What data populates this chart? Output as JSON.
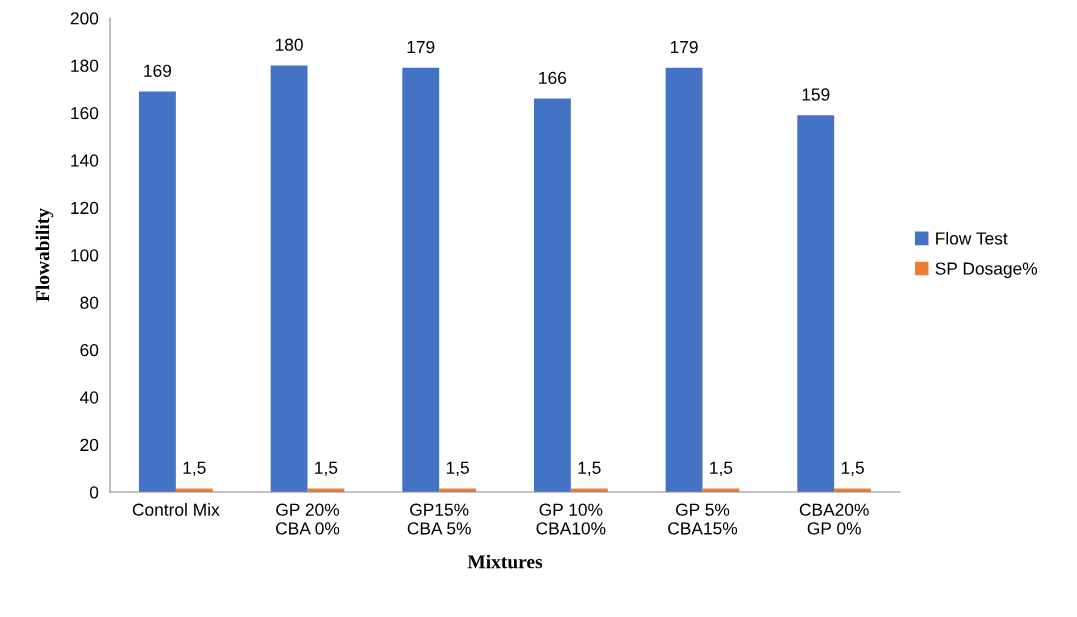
{
  "chart_data": {
    "type": "bar",
    "xlabel": "Mixtures",
    "ylabel": "Flowability",
    "categories": [
      "Control Mix",
      "GP 20%\nCBA 0%",
      "GP15%\nCBA 5%",
      "GP 10%\nCBA10%",
      "GP 5%\nCBA15%",
      "CBA20%\nGP 0%"
    ],
    "series": [
      {
        "name": "Flow Test",
        "color": "#4472c4",
        "values": [
          169,
          180,
          179,
          166,
          179,
          159
        ],
        "value_labels": [
          "169",
          "180",
          "179",
          "166",
          "179",
          "159"
        ]
      },
      {
        "name": "SP Dosage%",
        "color": "#ed7d31",
        "values": [
          1.5,
          1.5,
          1.5,
          1.5,
          1.5,
          1.5
        ],
        "value_labels": [
          "1,5",
          "1,5",
          "1,5",
          "1,5",
          "1,5",
          "1,5"
        ]
      }
    ],
    "ylim": [
      0,
      200
    ],
    "yticks": [
      0,
      20,
      40,
      60,
      80,
      100,
      120,
      140,
      160,
      180,
      200
    ],
    "grid": false,
    "legend": "right"
  }
}
